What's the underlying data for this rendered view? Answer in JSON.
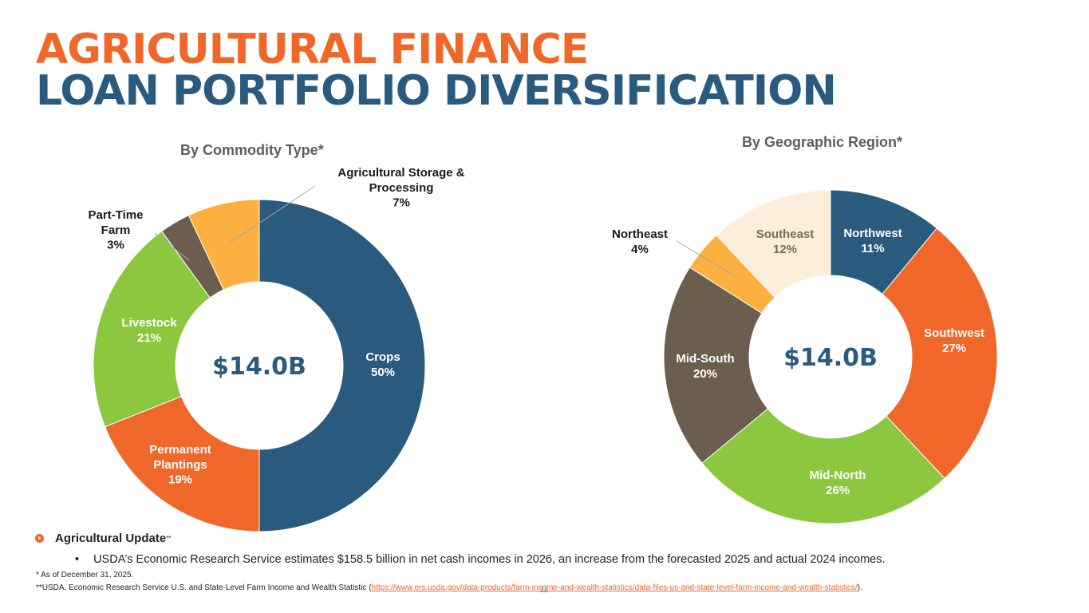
{
  "header": {
    "title_line1": "AGRICULTURAL FINANCE",
    "title_line2": "LOAN PORTFOLIO DIVERSIFICATION"
  },
  "chart_data": [
    {
      "type": "pie",
      "title": "By Commodity Type*",
      "center_label": "$14.0B",
      "slices": [
        {
          "name": "Crops",
          "label_lines": [
            "Crops"
          ],
          "value": 50,
          "value_label": "50%",
          "color": "#2A5A7E",
          "text_color": "#FFFFFF"
        },
        {
          "name": "Permanent Plantings",
          "label_lines": [
            "Permanent",
            "Plantings"
          ],
          "value": 19,
          "value_label": "19%",
          "color": "#F0672A",
          "text_color": "#FFFFFF"
        },
        {
          "name": "Livestock",
          "label_lines": [
            "Livestock"
          ],
          "value": 21,
          "value_label": "21%",
          "color": "#8DC63F",
          "text_color": "#FFFFFF"
        },
        {
          "name": "Part-Time Farm",
          "label_lines": [
            "Part-Time",
            "Farm"
          ],
          "value": 3,
          "value_label": "3%",
          "color": "#6B5E4E",
          "text_color": "#1A1A1A"
        },
        {
          "name": "Agricultural Storage & Processing",
          "label_lines": [
            "Agricultural Storage &",
            "Processing"
          ],
          "value": 7,
          "value_label": "7%",
          "color": "#FBB040",
          "text_color": "#1A1A1A"
        }
      ]
    },
    {
      "type": "pie",
      "title": "By Geographic Region*",
      "center_label": "$14.0B",
      "slices": [
        {
          "name": "Northwest",
          "label_lines": [
            "Northwest"
          ],
          "value": 11,
          "value_label": "11%",
          "color": "#2A5A7E",
          "text_color": "#FFFFFF"
        },
        {
          "name": "Southwest",
          "label_lines": [
            "Southwest"
          ],
          "value": 27,
          "value_label": "27%",
          "color": "#F0672A",
          "text_color": "#FFFFFF"
        },
        {
          "name": "Mid-North",
          "label_lines": [
            "Mid-North"
          ],
          "value": 26,
          "value_label": "26%",
          "color": "#8DC63F",
          "text_color": "#FFFFFF"
        },
        {
          "name": "Mid-South",
          "label_lines": [
            "Mid-South"
          ],
          "value": 20,
          "value_label": "20%",
          "color": "#6B5E4E",
          "text_color": "#FFFFFF"
        },
        {
          "name": "Northeast",
          "label_lines": [
            "Northeast"
          ],
          "value": 4,
          "value_label": "4%",
          "color": "#FBB040",
          "text_color": "#1A1A1A"
        },
        {
          "name": "Southeast",
          "label_lines": [
            "Southeast"
          ],
          "value": 12,
          "value_label": "12%",
          "color": "#FDEEDB",
          "text_color": "#7A6A5A"
        }
      ]
    }
  ],
  "update": {
    "heading": "Agricultural Update",
    "heading_sup": "**",
    "bullet_marker": "•",
    "bullet": "USDA’s Economic Research Service estimates $158.5 billion in net cash incomes in 2026, an increase from the forecasted 2025 and actual 2024 incomes."
  },
  "footnotes": {
    "line1": "* As of December 31, 2025.",
    "line2_prefix": "**USDA, Economic Research Service U.S. and State-Level Farm Income and Wealth Statistic (",
    "line2_link": "https://www.ers.usda.gov/data-products/farm-income-and-wealth-statistics/data-files-us-and-state-level-farm-income-and-wealth-statistics/",
    "line2_suffix": ")."
  },
  "page_number": "11"
}
